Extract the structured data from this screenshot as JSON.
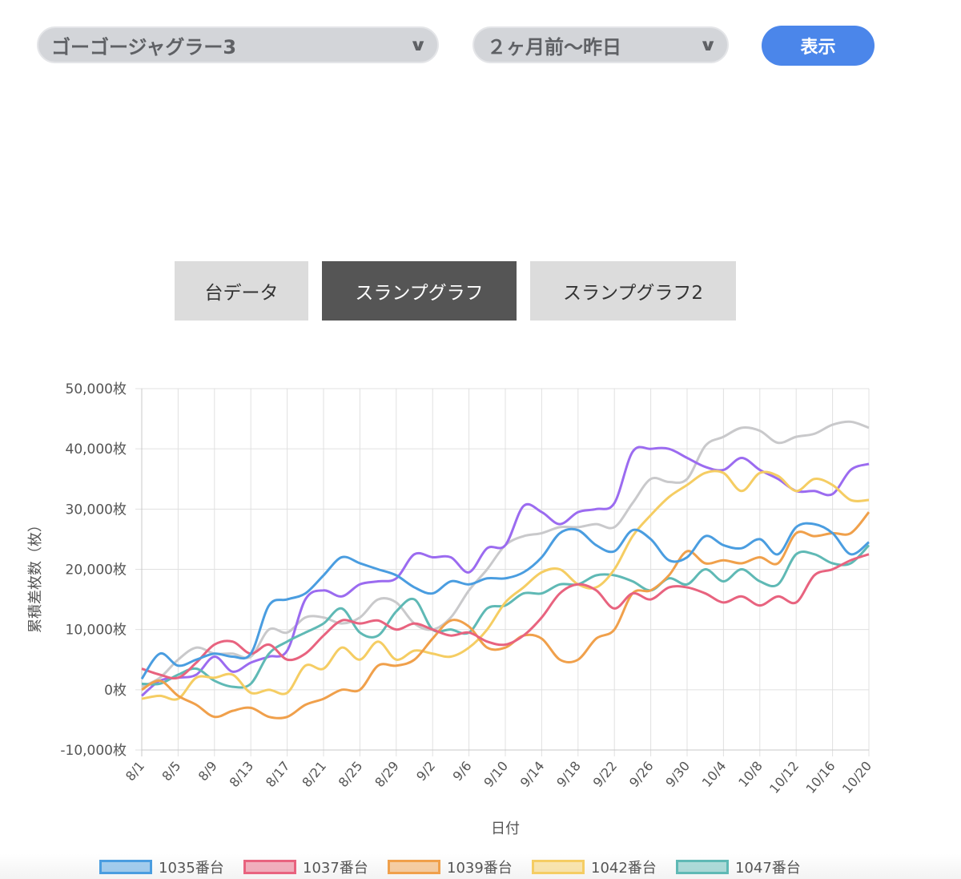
{
  "controls": {
    "machine_select": "ゴーゴージャグラー3",
    "range_select": "２ヶ月前〜昨日",
    "show_button": "表示",
    "chevron_icon": "chevron-down-icon"
  },
  "tabs": [
    {
      "label": "台データ",
      "active": false
    },
    {
      "label": "スランプグラフ",
      "active": true
    },
    {
      "label": "スランプグラフ2",
      "active": false
    }
  ],
  "chart_data": {
    "type": "line",
    "xlabel": "日付",
    "ylabel": "累積差枚数（枚）",
    "ylim": [
      -10000,
      50000
    ],
    "y_ticks": [
      "50,000枚",
      "40,000枚",
      "30,000枚",
      "20,000枚",
      "10,000枚",
      "0枚",
      "-10,000枚"
    ],
    "y_tick_values": [
      50000,
      40000,
      30000,
      20000,
      10000,
      0,
      -10000
    ],
    "x_tick_labels": [
      "8/1",
      "8/5",
      "8/9",
      "8/13",
      "8/17",
      "8/21",
      "8/25",
      "8/29",
      "9/2",
      "9/6",
      "9/10",
      "9/14",
      "9/18",
      "9/22",
      "9/26",
      "9/30",
      "10/4",
      "10/8",
      "10/12",
      "10/16",
      "10/20"
    ],
    "grid": true,
    "legend_position": "bottom",
    "x": [
      "8/1",
      "8/3",
      "8/5",
      "8/7",
      "8/9",
      "8/11",
      "8/13",
      "8/15",
      "8/17",
      "8/19",
      "8/21",
      "8/23",
      "8/25",
      "8/27",
      "8/29",
      "8/31",
      "9/2",
      "9/4",
      "9/6",
      "9/8",
      "9/10",
      "9/12",
      "9/14",
      "9/16",
      "9/18",
      "9/20",
      "9/22",
      "9/24",
      "9/26",
      "9/28",
      "9/30",
      "10/2",
      "10/4",
      "10/6",
      "10/8",
      "10/10",
      "10/12",
      "10/14",
      "10/16",
      "10/18",
      "10/20"
    ],
    "series": [
      {
        "name": "1035番台",
        "color": "#4a9de0",
        "values": [
          1800,
          6000,
          4000,
          5000,
          6000,
          5500,
          6000,
          14000,
          15000,
          16000,
          19000,
          22000,
          21000,
          20000,
          19000,
          17000,
          16000,
          18000,
          17500,
          18500,
          18500,
          19500,
          22000,
          26000,
          26500,
          24000,
          23000,
          26500,
          25000,
          21500,
          22000,
          25500,
          24000,
          23500,
          25000,
          22500,
          27000,
          27500,
          26000,
          22500,
          24500
        ]
      },
      {
        "name": "1037番台",
        "color": "#e8637f",
        "values": [
          3500,
          2500,
          2000,
          4500,
          7500,
          8000,
          6000,
          7500,
          5000,
          6000,
          9000,
          11500,
          11000,
          11500,
          10000,
          11000,
          10000,
          9000,
          9500,
          8000,
          7500,
          9000,
          12000,
          16000,
          17500,
          16500,
          13500,
          16000,
          15000,
          17000,
          17000,
          16000,
          14500,
          15500,
          14000,
          15500,
          14500,
          19000,
          20000,
          21500,
          22500
        ]
      },
      {
        "name": "1039番台",
        "color": "#f0a04b",
        "values": [
          0,
          1500,
          -1000,
          -2500,
          -4500,
          -3500,
          -3000,
          -4500,
          -4500,
          -2500,
          -1500,
          0,
          0,
          4000,
          4000,
          5000,
          8500,
          11500,
          10500,
          7000,
          7000,
          9000,
          8500,
          5000,
          5000,
          8500,
          10000,
          16000,
          16500,
          19000,
          23000,
          21000,
          21500,
          21000,
          22000,
          21000,
          26000,
          25500,
          26000,
          26000,
          29500
        ]
      },
      {
        "name": "1042番台",
        "color": "#f5cd63",
        "values": [
          -1500,
          -1000,
          -1500,
          2000,
          2000,
          2500,
          -500,
          0,
          -500,
          4000,
          3500,
          7000,
          5000,
          8000,
          5000,
          6500,
          6000,
          5500,
          7000,
          10000,
          14500,
          17000,
          19500,
          20000,
          17500,
          17000,
          20000,
          25500,
          29000,
          32000,
          34000,
          36000,
          36000,
          33000,
          36000,
          35500,
          33000,
          35000,
          34000,
          31500,
          31500
        ]
      },
      {
        "name": "1047番台",
        "color": "#5fb9b5",
        "values": [
          1000,
          1000,
          2500,
          3500,
          1500,
          500,
          1000,
          6000,
          8000,
          9500,
          11000,
          13500,
          9500,
          9000,
          13000,
          15000,
          10000,
          10000,
          9500,
          13500,
          14000,
          16000,
          16000,
          17500,
          17500,
          19000,
          19000,
          18000,
          16500,
          18500,
          17500,
          20000,
          18000,
          20000,
          18000,
          17500,
          22500,
          22500,
          21000,
          21000,
          24000
        ]
      },
      {
        "color": "#9b6bf0",
        "values": [
          -1000,
          1500,
          2000,
          2500,
          5500,
          3000,
          4500,
          5500,
          6500,
          15000,
          16500,
          15500,
          17500,
          18000,
          18500,
          22500,
          22000,
          22000,
          19500,
          23500,
          24000,
          30500,
          29500,
          27500,
          29500,
          30000,
          31000,
          39500,
          40000,
          40000,
          38500,
          37000,
          36500,
          38500,
          36500,
          35000,
          33000,
          33000,
          32500,
          36500,
          37500
        ]
      },
      {
        "color": "#c9c9cb",
        "values": [
          500,
          2000,
          5000,
          7000,
          6000,
          6000,
          5500,
          10000,
          9500,
          12000,
          12000,
          11000,
          12000,
          15000,
          14500,
          11000,
          10000,
          12000,
          16500,
          20000,
          24000,
          25500,
          26000,
          27000,
          27000,
          27500,
          27000,
          31000,
          35000,
          34500,
          35000,
          40500,
          42000,
          43500,
          43000,
          41000,
          42000,
          42500,
          44000,
          44500,
          43500
        ]
      }
    ]
  }
}
